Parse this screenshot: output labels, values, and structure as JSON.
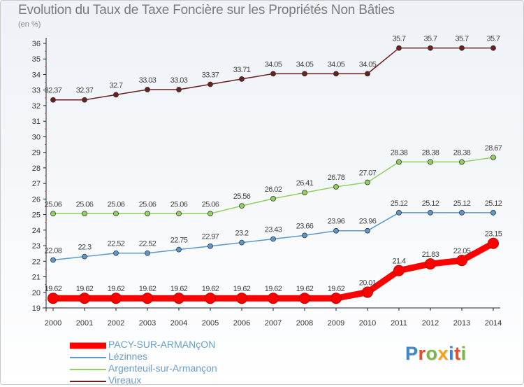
{
  "title": "Evolution du Taux de Taxe Foncière sur les Propriétés Non Bâties",
  "subtitle": "(en %)",
  "logo": {
    "text": "Proxiti",
    "colors": [
      "#3d87c7",
      "#e94c2a",
      "#7ab648",
      "#f2a21b",
      "#3d87c7",
      "#e94c2a",
      "#7ab648"
    ]
  },
  "chart_data": {
    "type": "line",
    "title": "Evolution du Taux de Taxe Foncière sur les Propriétés Non Bâties",
    "ylabel": "(en %)",
    "xlabel": "",
    "x": [
      "2000",
      "2001",
      "2002",
      "2003",
      "2004",
      "2005",
      "2006",
      "2007",
      "2008",
      "2009",
      "2010",
      "2011",
      "2012",
      "2013",
      "2014"
    ],
    "ylim": [
      19,
      36
    ],
    "yticks": [
      19,
      20,
      21,
      22,
      23,
      24,
      25,
      26,
      27,
      28,
      29,
      30,
      31,
      32,
      33,
      34,
      35,
      36
    ],
    "grid": false,
    "legend_position": "bottom-left",
    "series": [
      {
        "name": "Vireaux",
        "color": "#6b1f1f",
        "values": [
          32.37,
          32.37,
          32.7,
          33.03,
          33.03,
          33.37,
          33.71,
          34.05,
          34.05,
          34.05,
          34.05,
          35.7,
          35.7,
          35.7,
          35.7
        ],
        "labels": [
          "32.37",
          "32.37",
          "32.7",
          "33.03",
          "33.03",
          "33.37",
          "33.71",
          "34.05",
          "34.05",
          "34.05",
          "34.05",
          "35.7",
          "35.7",
          "35.7",
          "35.7"
        ]
      },
      {
        "name": "Argenteuil-sur-Armançon",
        "color": "#93d15f",
        "values": [
          25.06,
          25.06,
          25.06,
          25.06,
          25.06,
          25.06,
          25.56,
          26.02,
          26.41,
          26.78,
          27.07,
          28.38,
          28.38,
          28.38,
          28.67
        ],
        "labels": [
          "25.06",
          "25.06",
          "25.06",
          "25.06",
          "25.06",
          "25.06",
          "25.56",
          "26.02",
          "26.41",
          "26.78",
          "27.07",
          "28.38",
          "28.38",
          "28.38",
          "28.67"
        ]
      },
      {
        "name": "Lézinnes",
        "color": "#5b99cc",
        "values": [
          22.08,
          22.3,
          22.52,
          22.52,
          22.75,
          22.97,
          23.2,
          23.43,
          23.66,
          23.96,
          23.96,
          25.12,
          25.12,
          25.12,
          25.12
        ],
        "labels": [
          "22.08",
          "22.3",
          "22.52",
          "22.52",
          "22.75",
          "22.97",
          "23.2",
          "23.43",
          "23.66",
          "23.96",
          "23.96",
          "25.12",
          "25.12",
          "25.12",
          "25.12"
        ]
      },
      {
        "name": "PACY-SUR-ARMANçON",
        "color": "#ff0000",
        "highlight": true,
        "values": [
          19.62,
          19.62,
          19.62,
          19.62,
          19.62,
          19.62,
          19.62,
          19.62,
          19.62,
          19.62,
          20.01,
          21.4,
          21.83,
          22.05,
          23.15
        ],
        "labels": [
          "19.62",
          "19.62",
          "19.62",
          "19.62",
          "19.62",
          "19.62",
          "19.62",
          "19.62",
          "19.62",
          "19.62",
          "20.01",
          "21.4",
          "21.83",
          "22.05",
          "23.15"
        ]
      }
    ],
    "legend_order": [
      "PACY-SUR-ARMANçON",
      "Lézinnes",
      "Argenteuil-sur-Armançon",
      "Vireaux"
    ]
  }
}
